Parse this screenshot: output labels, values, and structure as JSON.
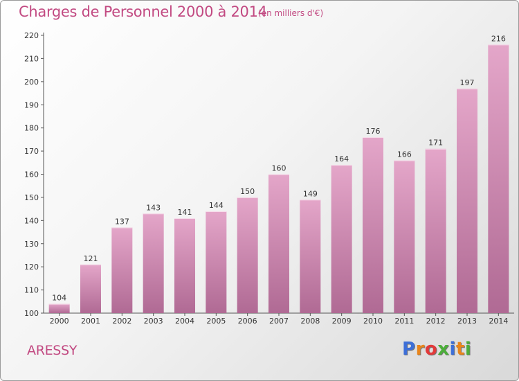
{
  "header": {
    "title": "Charges de Personnel 2000 à 2014",
    "subtitle": "(en milliers d'€)"
  },
  "footer": {
    "place": "ARESSY",
    "logo_letters": [
      "P",
      "r",
      "o",
      "x",
      "i",
      "t",
      "i"
    ]
  },
  "colors": {
    "accent": "#c24a82",
    "bar_top": "#e4a6c9",
    "bar_bottom": "#b06a94",
    "logo": [
      "#3d6fd8",
      "#e8851c",
      "#e23a3a",
      "#4cae3a",
      "#3d6fd8",
      "#e8851c",
      "#4cae3a"
    ]
  },
  "chart_data": {
    "type": "bar",
    "categories": [
      "2000",
      "2001",
      "2002",
      "2003",
      "2004",
      "2005",
      "2006",
      "2007",
      "2008",
      "2009",
      "2010",
      "2011",
      "2012",
      "2013",
      "2014"
    ],
    "values": [
      104,
      121,
      137,
      143,
      141,
      144,
      150,
      160,
      149,
      164,
      176,
      166,
      171,
      197,
      216
    ],
    "value_labels": [
      "104",
      "121",
      "137",
      "143",
      "141",
      "144",
      "150",
      "160",
      "149",
      "164",
      "176",
      "166",
      "171",
      "197",
      "216"
    ],
    "y_ticks": [
      100,
      110,
      120,
      130,
      140,
      150,
      160,
      170,
      180,
      190,
      200,
      210,
      220
    ],
    "y_tick_labels": [
      "100",
      "110",
      "120",
      "130",
      "140",
      "150",
      "160",
      "170",
      "180",
      "190",
      "200",
      "210",
      "220"
    ],
    "ylim": [
      100,
      220
    ],
    "grid": false
  }
}
